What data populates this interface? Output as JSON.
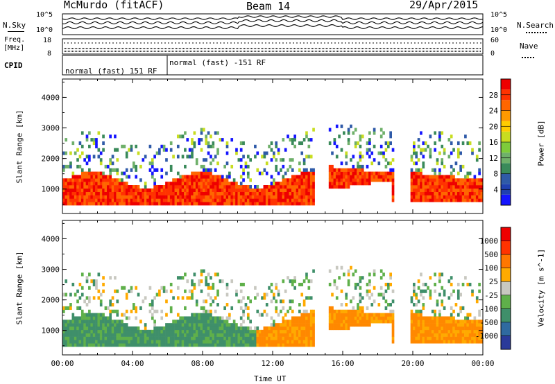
{
  "header": {
    "station": "McMurdo (fitACF)",
    "beam": "Beam 14",
    "date": "29/Apr/2015"
  },
  "noise_panel": {
    "left_label": "N.Sky",
    "left_ticks": [
      "10^5",
      "10^0"
    ],
    "right_label": "N.Search",
    "right_ticks": [
      "10^5",
      "10^0"
    ]
  },
  "freq_panel": {
    "left_label_1": "Freq.",
    "left_label_2": "[MHz]",
    "left_ticks": [
      "18",
      "8"
    ],
    "right_label": "Nave",
    "right_ticks": [
      "60",
      "0"
    ]
  },
  "cpid_panel": {
    "label": "CPID",
    "segments": [
      "normal (fast) 151 RF",
      "normal (fast) -151 RF"
    ]
  },
  "chart_data": [
    {
      "type": "heatmap",
      "title": "",
      "ylabel": "Slant Range [km]",
      "xlabel": "",
      "y_ticks": [
        "1000",
        "2000",
        "3000",
        "4000"
      ],
      "ylim": [
        200,
        4600
      ],
      "xlim_hours": [
        0,
        24
      ],
      "colorbar": {
        "label": "Power [dB]",
        "ticks": [
          "4",
          "8",
          "12",
          "16",
          "20",
          "24",
          "28"
        ],
        "colors": [
          "#1515ff",
          "#2040b0",
          "#2f5aa8",
          "#3a8a5a",
          "#6fb06a",
          "#7ecc3a",
          "#c8dd20",
          "#ffcc00",
          "#ff9900",
          "#ff6600",
          "#ff3300",
          "#ee0000"
        ]
      }
    },
    {
      "type": "heatmap",
      "title": "",
      "ylabel": "Slant Range [km]",
      "xlabel": "Time UT",
      "y_ticks": [
        "1000",
        "2000",
        "3000",
        "4000"
      ],
      "x_ticks": [
        "00:00",
        "04:00",
        "08:00",
        "12:00",
        "16:00",
        "20:00",
        "00:00"
      ],
      "ylim": [
        200,
        4600
      ],
      "xlim_hours": [
        0,
        24
      ],
      "colorbar": {
        "label": "Velocity [m s^-1]",
        "ticks": [
          "1000",
          "500",
          "100",
          "25",
          "-25",
          "-100",
          "-500",
          "-1000"
        ],
        "colors": [
          "#2a3a9a",
          "#2f6aa0",
          "#3f8f6a",
          "#5fb04a",
          "#c8c8c0",
          "#ffaa00",
          "#ff7700",
          "#ff3300",
          "#ee0000"
        ]
      }
    }
  ]
}
